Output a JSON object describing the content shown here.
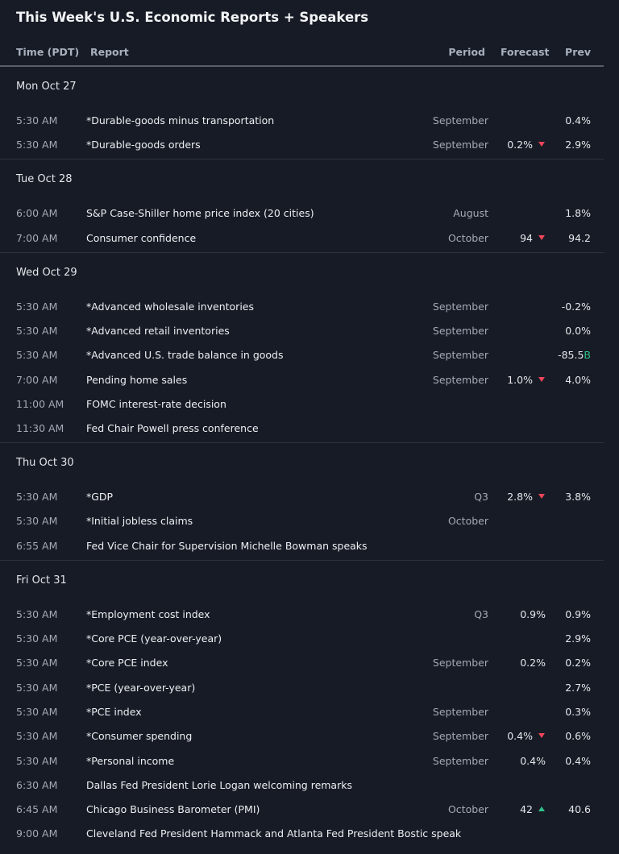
{
  "header": {
    "title": "This Week's U.S. Economic Reports + Speakers"
  },
  "columns": {
    "time": "Time (PDT)",
    "report": "Report",
    "period": "Period",
    "forecast": "Forecast",
    "prev": "Prev"
  },
  "days": [
    {
      "label": "Mon Oct 27",
      "rows": [
        {
          "time": "5:30 AM",
          "report": "*Durable-goods minus transportation",
          "period": "September",
          "prev": "0.4%"
        },
        {
          "time": "5:30 AM",
          "report": "*Durable-goods orders",
          "period": "September",
          "forecast": "0.2%",
          "trend": "down",
          "prev": "2.9%"
        }
      ]
    },
    {
      "label": "Tue Oct 28",
      "rows": [
        {
          "time": "6:00 AM",
          "report": "S&P Case-Shiller home price index (20 cities)",
          "period": "August",
          "prev": "1.8%"
        },
        {
          "time": "7:00 AM",
          "report": "Consumer confidence",
          "period": "October",
          "forecast": "94",
          "trend": "down",
          "prev": "94.2"
        }
      ]
    },
    {
      "label": "Wed Oct 29",
      "rows": [
        {
          "time": "5:30 AM",
          "report": "*Advanced wholesale inventories",
          "period": "September",
          "prev": "-0.2%"
        },
        {
          "time": "5:30 AM",
          "report": "*Advanced retail inventories",
          "period": "September",
          "prev": "0.0%"
        },
        {
          "time": "5:30 AM",
          "report": "*Advanced U.S. trade balance in goods",
          "period": "September",
          "prev": "-85.5",
          "prev_unit": "B"
        },
        {
          "time": "7:00 AM",
          "report": "Pending home sales",
          "period": "September",
          "forecast": "1.0%",
          "trend": "down",
          "prev": "4.0%"
        },
        {
          "time": "11:00 AM",
          "report": "FOMC interest-rate decision"
        },
        {
          "time": "11:30 AM",
          "report": "Fed Chair Powell press conference"
        }
      ]
    },
    {
      "label": "Thu Oct 30",
      "rows": [
        {
          "time": "5:30 AM",
          "report": "*GDP",
          "period": "Q3",
          "forecast": "2.8%",
          "trend": "down",
          "prev": "3.8%"
        },
        {
          "time": "5:30 AM",
          "report": "*Initial jobless claims",
          "period": "October"
        },
        {
          "time": "6:55 AM",
          "report": "Fed Vice Chair for Supervision Michelle Bowman speaks"
        }
      ]
    },
    {
      "label": "Fri Oct 31",
      "rows": [
        {
          "time": "5:30 AM",
          "report": "*Employment cost index",
          "period": "Q3",
          "forecast": "0.9%",
          "prev": "0.9%"
        },
        {
          "time": "5:30 AM",
          "report": "*Core PCE (year-over-year)",
          "prev": "2.9%"
        },
        {
          "time": "5:30 AM",
          "report": "*Core PCE index",
          "period": "September",
          "forecast": "0.2%",
          "prev": "0.2%"
        },
        {
          "time": "5:30 AM",
          "report": "*PCE (year-over-year)",
          "prev": "2.7%"
        },
        {
          "time": "5:30 AM",
          "report": "*PCE index",
          "period": "September",
          "prev": "0.3%"
        },
        {
          "time": "5:30 AM",
          "report": "*Consumer spending",
          "period": "September",
          "forecast": "0.4%",
          "trend": "down",
          "prev": "0.6%"
        },
        {
          "time": "5:30 AM",
          "report": "*Personal income",
          "period": "September",
          "forecast": "0.4%",
          "prev": "0.4%"
        },
        {
          "time": "6:30 AM",
          "report": "Dallas Fed President Lorie Logan welcoming remarks"
        },
        {
          "time": "6:45 AM",
          "report": "Chicago Business Barometer (PMI)",
          "period": "October",
          "forecast": "42",
          "trend": "up",
          "prev": "40.6"
        },
        {
          "time": "9:00 AM",
          "report": "Cleveland Fed President Hammack and Atlanta Fed President Bostic speak"
        }
      ]
    }
  ]
}
